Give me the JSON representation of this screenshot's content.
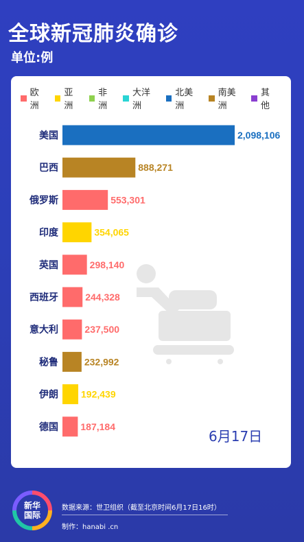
{
  "title": "全球新冠肺炎确诊",
  "subtitle": "单位:例",
  "date": "6月17日",
  "footer": {
    "source": "数据来源：世卫组织（截至北京时间6月17日16时）",
    "credit": "制作：hanabi .cn",
    "logo_line1": "新华",
    "logo_line2": "国际"
  },
  "colors": {
    "europe": "#ff6b6b",
    "asia": "#ffd500",
    "africa": "#8fd14f",
    "oceania": "#2ad4d4",
    "north_america": "#1a6fc0",
    "south_america": "#b88424",
    "other": "#8a3fd0",
    "label_text": "#1f2c7a"
  },
  "legend": [
    {
      "label": "欧洲",
      "color": "#ff6b6b"
    },
    {
      "label": "亚洲",
      "color": "#ffd500"
    },
    {
      "label": "非洲",
      "color": "#8fd14f"
    },
    {
      "label": "大洋洲",
      "color": "#2ad4d4"
    },
    {
      "label": "北美洲",
      "color": "#1a6fc0"
    },
    {
      "label": "南美洲",
      "color": "#b88424"
    },
    {
      "label": "其他",
      "color": "#8a3fd0"
    }
  ],
  "chart_data": {
    "type": "bar",
    "orientation": "horizontal",
    "categories": [
      "美国",
      "巴西",
      "俄罗斯",
      "印度",
      "英国",
      "西班牙",
      "意大利",
      "秘鲁",
      "伊朗",
      "德国"
    ],
    "values": [
      2098106,
      888271,
      553301,
      354065,
      298140,
      244328,
      237500,
      232992,
      192439,
      187184
    ],
    "value_labels": [
      "2,098,106",
      "888,271",
      "553,301",
      "354,065",
      "298,140",
      "244,328",
      "237,500",
      "232,992",
      "192,439",
      "187,184"
    ],
    "regions": [
      "北美洲",
      "南美洲",
      "欧洲",
      "亚洲",
      "欧洲",
      "欧洲",
      "欧洲",
      "南美洲",
      "亚洲",
      "欧洲"
    ],
    "bar_colors": [
      "#1a6fc0",
      "#b88424",
      "#ff6b6b",
      "#ffd500",
      "#ff6b6b",
      "#ff6b6b",
      "#ff6b6b",
      "#b88424",
      "#ffd500",
      "#ff6b6b"
    ],
    "title": "",
    "xlabel": "",
    "ylabel": "",
    "grid": false,
    "legend_position": "top"
  }
}
